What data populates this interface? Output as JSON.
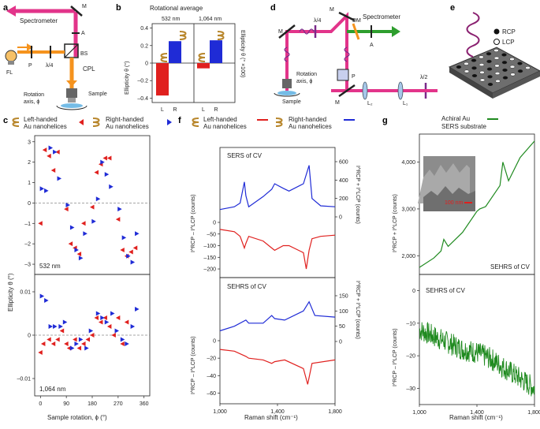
{
  "colors": {
    "rcp": "#1f2bd6",
    "lcp": "#e0201e",
    "achiral": "#1f8a1f",
    "pink_beam": "#e2348a",
    "orange_beam": "#f5931e",
    "green_beam": "#2e9e2e",
    "helix": "#b8862b"
  },
  "panel_a": {
    "letter": "a",
    "labels": {
      "spectrometer": "Spectrometer",
      "m": "M",
      "a": "A",
      "bs": "BS",
      "fl": "FL",
      "p": "P",
      "lambda4": "λ/4",
      "cpl": "CPL",
      "rotation": "Rotation",
      "axis": "axis, ϕ",
      "sample": "Sample"
    }
  },
  "panel_b": {
    "letter": "b",
    "title": "Rotational average",
    "group1": "532 nm",
    "group2": "1,064 nm",
    "ylabel_left": "Ellipticity θ (°)",
    "ylabel_right": "Ellipticity θ (° ×100)",
    "xcats": [
      "L",
      "R",
      "L",
      "R"
    ],
    "yticks": [
      "0.4",
      "0.2",
      "0",
      "–0.2",
      "–0.4"
    ]
  },
  "panel_d": {
    "letter": "d",
    "labels": {
      "m1": "M",
      "m2": "M",
      "m3": "M",
      "lambda4": "λ/4",
      "dm": "DM",
      "spectrometer": "Spectrometer",
      "a": "A",
      "p": "P",
      "rotation": "Rotation",
      "axis": "axis, ϕ",
      "sample": "Sample",
      "l2": "L₂",
      "l1": "L₁",
      "lambda2": "λ/2"
    }
  },
  "panel_e": {
    "letter": "e",
    "legend_rcp": "RCP",
    "legend_lcp": "LCP"
  },
  "panel_c": {
    "letter": "c",
    "legend_left": [
      "Left-handed",
      "Au nanohelices"
    ],
    "legend_right": [
      "Right-handed",
      "Au nanohelices"
    ],
    "ylabel": "Ellipticity θ (°)",
    "xlabel": "Sample rotation, ϕ (°)",
    "xticks": [
      "0",
      "90",
      "180",
      "270",
      "360"
    ],
    "top_yticks": [
      "3",
      "2",
      "1",
      "0",
      "–1",
      "–2",
      "–3"
    ],
    "bottom_yticks": [
      "0.01",
      "0",
      "–0.01"
    ],
    "top_label": "532 nm",
    "bottom_label": "1,064 nm"
  },
  "panel_f": {
    "letter": "f",
    "legend_left": [
      "Left-handed",
      "Au nanohelices"
    ],
    "legend_right": [
      "Right-handed",
      "Au nanohelices"
    ],
    "top_title": "SERS of CV",
    "bottom_title": "SEHRS of CV",
    "ylabel_left_top": "I^RCP – I^LCP (counts)",
    "ylabel_left_bottom": "I^RCP – I^LCP (counts)",
    "ylabel_right_top": "I^RCP + I^LCP (counts)",
    "ylabel_right_bottom": "I^RCP + I^LCP (counts)",
    "xlabel": "Raman shift (cm⁻¹)",
    "xticks": [
      "1,000",
      "1,400",
      "1,800"
    ],
    "top_left_ticks": [
      "0",
      "–50",
      "–100",
      "–150",
      "–200"
    ],
    "top_right_ticks": [
      "600",
      "400",
      "200",
      "0"
    ],
    "bottom_left_ticks": [
      "0",
      "–20",
      "–40",
      "–60"
    ],
    "bottom_right_ticks": [
      "150",
      "100",
      "50",
      "0"
    ]
  },
  "panel_g": {
    "letter": "g",
    "legend": [
      "Achiral Au",
      "SERS substrate"
    ],
    "top_title": "SEHRS of CV",
    "bottom_title": "SEHRS of CV",
    "inset_scale": "100 nm",
    "ylabel_top": "I^RCP + I^LCP (counts)",
    "ylabel_bottom": "I^RCP – I^LCP (counts)",
    "xlabel": "Raman shift (cm⁻¹)",
    "xticks": [
      "1,000",
      "1,400",
      "1,800"
    ],
    "top_yticks": [
      "4,000",
      "3,000",
      "2,000"
    ],
    "bottom_yticks": [
      "0",
      "–10",
      "–20",
      "–30"
    ]
  },
  "chart_data": [
    {
      "id": "b",
      "type": "bar",
      "title": "Rotational average",
      "categories": [
        "L 532 nm",
        "R 532 nm",
        "L 1,064 nm",
        "R 1,064 nm"
      ],
      "values": [
        -0.37,
        0.25,
        -0.06,
        0.26
      ],
      "ylim": [
        -0.45,
        0.45
      ]
    },
    {
      "id": "c-532",
      "type": "scatter",
      "xlabel": "Sample rotation, ϕ (°)",
      "ylabel": "Ellipticity θ (°)",
      "ylim": [
        -3.5,
        3.3
      ],
      "xlim": [
        -20,
        380
      ],
      "series": [
        {
          "name": "Left-handed",
          "x": [
            0,
            15,
            30,
            45,
            60,
            90,
            105,
            120,
            135,
            150,
            180,
            195,
            210,
            225,
            240,
            270,
            285,
            300,
            315,
            330
          ],
          "y": [
            -1.0,
            2.6,
            2.3,
            1.6,
            2.5,
            -0.3,
            -2.0,
            -2.2,
            -2.5,
            -1.0,
            -0.2,
            1.5,
            1.9,
            2.2,
            2.2,
            -0.8,
            -2.3,
            -2.6,
            -2.4,
            -2.2
          ]
        },
        {
          "name": "Right-handed",
          "x": [
            5,
            20,
            35,
            50,
            65,
            95,
            110,
            125,
            140,
            155,
            185,
            200,
            215,
            230,
            245,
            275,
            290,
            305,
            320,
            335
          ],
          "y": [
            0.7,
            0.6,
            2.7,
            2.5,
            1.2,
            -0.1,
            -1.2,
            -2.3,
            -2.7,
            -1.5,
            -0.9,
            0.2,
            2.0,
            1.4,
            0.8,
            -0.3,
            -1.7,
            -2.6,
            -2.9,
            -1.5
          ]
        }
      ]
    },
    {
      "id": "c-1064",
      "type": "scatter",
      "ylim": [
        -0.014,
        0.014
      ],
      "series": [
        {
          "name": "Left-handed",
          "x": [
            0,
            10,
            30,
            45,
            60,
            75,
            90,
            100,
            120,
            135,
            150,
            165,
            180,
            195,
            210,
            225,
            240,
            255,
            270,
            285,
            300
          ],
          "y": [
            -0.004,
            -0.002,
            -0.001,
            -0.002,
            -0.001,
            0.001,
            -0.002,
            -0.003,
            -0.001,
            -0.003,
            -0.002,
            -0.001,
            0.0,
            0.004,
            0.003,
            0.004,
            0.002,
            0.0,
            0.004,
            -0.002,
            0.003
          ]
        },
        {
          "name": "Right-handed",
          "x": [
            5,
            20,
            35,
            50,
            70,
            85,
            110,
            125,
            140,
            160,
            175,
            200,
            215,
            230,
            250,
            265,
            285,
            300,
            320,
            335
          ],
          "y": [
            0.009,
            0.008,
            0.002,
            0.002,
            0.002,
            0.003,
            -0.003,
            -0.002,
            -0.001,
            -0.003,
            0.001,
            0.005,
            0.004,
            0.003,
            0.005,
            0.001,
            -0.001,
            -0.002,
            0.002,
            0.006
          ]
        }
      ]
    },
    {
      "id": "f-sers",
      "type": "line",
      "xlabel": "Raman shift (cm⁻¹)",
      "xlim": [
        1000,
        1800
      ],
      "series": [
        {
          "name": "Right-handed sum (blue)",
          "x": [
            1000,
            1100,
            1140,
            1170,
            1180,
            1200,
            1300,
            1360,
            1380,
            1440,
            1480,
            1580,
            1620,
            1640,
            1700,
            1800
          ],
          "y": [
            80,
            110,
            150,
            380,
            230,
            110,
            220,
            300,
            360,
            310,
            280,
            360,
            560,
            200,
            120,
            110
          ]
        },
        {
          "name": "Left-handed difference (red)",
          "x": [
            1000,
            1100,
            1140,
            1170,
            1180,
            1200,
            1300,
            1360,
            1380,
            1440,
            1480,
            1580,
            1600,
            1620,
            1640,
            1700,
            1800
          ],
          "y": [
            -30,
            -40,
            -60,
            -110,
            -90,
            -60,
            -80,
            -110,
            -120,
            -100,
            -100,
            -130,
            -200,
            -120,
            -70,
            -60,
            -55
          ]
        }
      ]
    },
    {
      "id": "f-sehrs",
      "type": "line",
      "xlim": [
        1000,
        1800
      ],
      "series": [
        {
          "name": "Right-handed sum (blue)",
          "x": [
            1000,
            1100,
            1180,
            1200,
            1300,
            1360,
            1380,
            1450,
            1580,
            1620,
            1660,
            1800
          ],
          "y": [
            35,
            50,
            70,
            60,
            60,
            85,
            75,
            70,
            100,
            130,
            85,
            80
          ]
        },
        {
          "name": "Left-handed difference (red)",
          "x": [
            1000,
            1100,
            1180,
            1200,
            1300,
            1360,
            1380,
            1450,
            1580,
            1610,
            1640,
            1800
          ],
          "y": [
            -10,
            -12,
            -18,
            -20,
            -22,
            -26,
            -24,
            -22,
            -32,
            -50,
            -26,
            -22
          ]
        }
      ]
    },
    {
      "id": "g-sum",
      "type": "line",
      "xlim": [
        1000,
        1800
      ],
      "series": [
        {
          "name": "Achiral Au SERS substrate",
          "x": [
            1000,
            1100,
            1150,
            1170,
            1200,
            1300,
            1400,
            1420,
            1460,
            1560,
            1580,
            1620,
            1700,
            1800
          ],
          "y": [
            1750,
            1950,
            2100,
            2350,
            2200,
            2500,
            2950,
            3000,
            3050,
            3500,
            4000,
            3600,
            4100,
            4450
          ]
        }
      ]
    },
    {
      "id": "g-diff",
      "type": "line",
      "xlim": [
        1000,
        1800
      ],
      "series": [
        {
          "name": "Achiral Au SERS substrate",
          "x": [
            1000,
            1100,
            1200,
            1300,
            1400,
            1500,
            1600,
            1700,
            1800
          ],
          "y": [
            -12,
            -14,
            -16,
            -18,
            -19,
            -21,
            -24,
            -27,
            -30
          ]
        }
      ]
    }
  ]
}
